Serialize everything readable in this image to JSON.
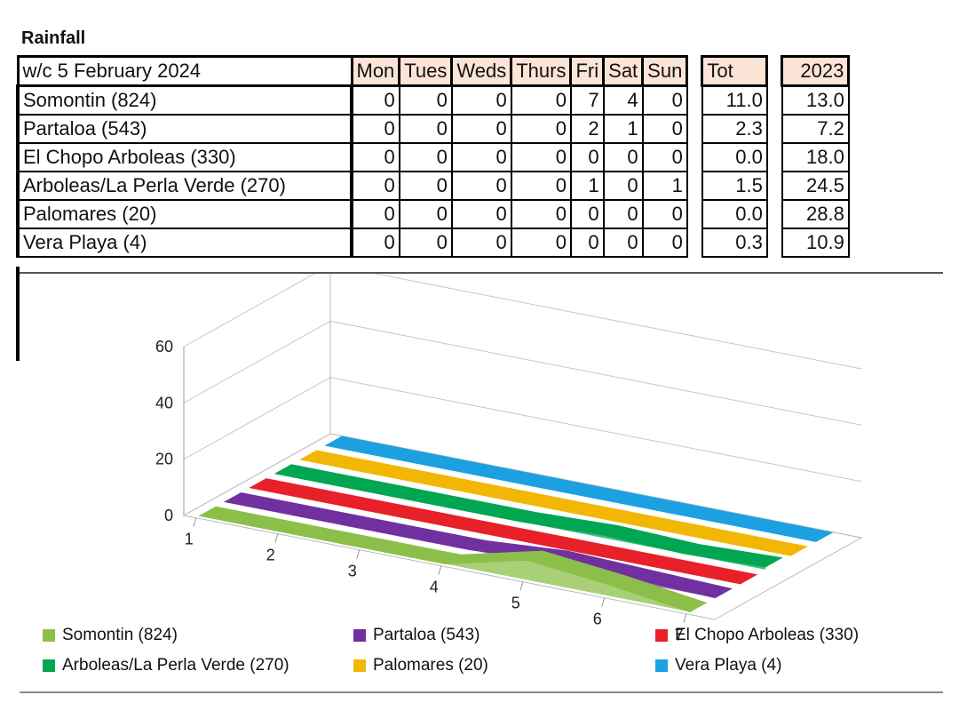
{
  "title": "Rainfall",
  "table": {
    "week_label": "w/c 5 February 2024",
    "day_headers": [
      "Mon",
      "Tues",
      "Weds",
      "Thurs",
      "Fri",
      "Sat",
      "Sun"
    ],
    "tot_header": "Tot",
    "year_header": "2023",
    "rows": [
      {
        "name": "Somontin (824)",
        "days": [
          "0",
          "0",
          "0",
          "0",
          "7",
          "4",
          "0"
        ],
        "tot": "11.0",
        "year": "13.0"
      },
      {
        "name": "Partaloa (543)",
        "days": [
          "0",
          "0",
          "0",
          "0",
          "2",
          "1",
          "0"
        ],
        "tot": "2.3",
        "year": "7.2"
      },
      {
        "name": "El Chopo Arboleas (330)",
        "days": [
          "0",
          "0",
          "0",
          "0",
          "0",
          "0",
          "0"
        ],
        "tot": "0.0",
        "year": "18.0"
      },
      {
        "name": "Arboleas/La Perla Verde (270)",
        "days": [
          "0",
          "0",
          "0",
          "0",
          "1",
          "0",
          "1"
        ],
        "tot": "1.5",
        "year": "24.5"
      },
      {
        "name": "Palomares (20)",
        "days": [
          "0",
          "0",
          "0",
          "0",
          "0",
          "0",
          "0"
        ],
        "tot": "0.0",
        "year": "28.8"
      },
      {
        "name": "Vera Playa (4)",
        "days": [
          "0",
          "0",
          "0",
          "0",
          "0",
          "0",
          "0"
        ],
        "tot": "0.3",
        "year": "10.9"
      }
    ]
  },
  "chart_data": {
    "type": "area",
    "view": "3d",
    "x": [
      1,
      2,
      3,
      4,
      5,
      6,
      7
    ],
    "x_tick_labels": [
      "1",
      "2",
      "3",
      "4",
      "5",
      "6",
      "7"
    ],
    "y_tick_labels": [
      "0",
      "20",
      "40",
      "60"
    ],
    "ylim": [
      0,
      60
    ],
    "legend_position": "bottom",
    "series": [
      {
        "name": "Somontin (824)",
        "values": [
          0,
          0,
          0,
          0,
          7,
          4,
          0
        ],
        "color": "#8cbf4a"
      },
      {
        "name": "Partaloa (543)",
        "values": [
          0,
          0,
          0,
          0,
          2,
          1,
          0
        ],
        "color": "#7030a0"
      },
      {
        "name": "El Chopo Arboleas (330)",
        "values": [
          0,
          0,
          0,
          0,
          0,
          0,
          0
        ],
        "color": "#e8202a"
      },
      {
        "name": "Arboleas/La Perla Verde (270)",
        "values": [
          0,
          0,
          0,
          0,
          1,
          0,
          1
        ],
        "color": "#00a651"
      },
      {
        "name": "Palomares (20)",
        "values": [
          0,
          0,
          0,
          0,
          0,
          0,
          0
        ],
        "color": "#f2b705"
      },
      {
        "name": "Vera Playa (4)",
        "values": [
          0,
          0,
          0,
          0,
          0,
          0,
          0
        ],
        "color": "#1ba1e2"
      }
    ]
  }
}
